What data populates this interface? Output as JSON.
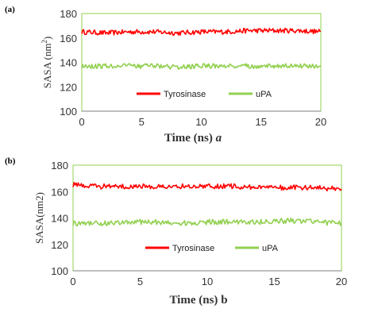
{
  "chart_data": [
    {
      "panel_label": "(a)",
      "type": "line",
      "xlabel": "Time (ns)",
      "xlabel_suffix": "a",
      "ylabel_main": "SASA (nm",
      "ylabel_sup": "2",
      "ylabel_end": ")",
      "xlim": [
        0,
        20
      ],
      "ylim": [
        100,
        180
      ],
      "xticks": [
        "0",
        "5",
        "10",
        "15",
        "20"
      ],
      "yticks": [
        "100",
        "120",
        "140",
        "160",
        "180"
      ],
      "grid": false,
      "legend_position": "inside-lower-center",
      "series": [
        {
          "name": "Tyrosinase",
          "color": "#ff0000",
          "x": [
            0,
            2,
            4,
            6,
            8,
            10,
            12,
            14,
            16,
            18,
            20
          ],
          "y": [
            165,
            164,
            165,
            165,
            164,
            165,
            165,
            166,
            166,
            166,
            165
          ],
          "noise": 2
        },
        {
          "name": "uPA",
          "color": "#92d050",
          "x": [
            0,
            2,
            4,
            6,
            8,
            10,
            12,
            14,
            16,
            18,
            20
          ],
          "y": [
            137,
            137,
            137,
            137,
            136,
            137,
            137,
            137,
            137,
            137,
            137
          ],
          "noise": 2
        }
      ]
    },
    {
      "panel_label": "(b)",
      "type": "line",
      "xlabel": "Time (ns)",
      "xlabel_suffix": "b",
      "ylabel_main": "SASA(nm2)",
      "ylabel_sup": "",
      "ylabel_end": "",
      "xlim": [
        0,
        20
      ],
      "ylim": [
        100,
        180
      ],
      "xticks": [
        "0",
        "5",
        "10",
        "15",
        "20"
      ],
      "yticks": [
        "100",
        "120",
        "140",
        "160",
        "180"
      ],
      "grid": false,
      "legend_position": "inside-center",
      "series": [
        {
          "name": "Tyrosinase",
          "color": "#ff0000",
          "x": [
            0,
            2,
            4,
            6,
            8,
            10,
            12,
            14,
            16,
            18,
            20
          ],
          "y": [
            165,
            164,
            164,
            164,
            164,
            164,
            164,
            163,
            163,
            163,
            162
          ],
          "noise": 2
        },
        {
          "name": "uPA",
          "color": "#92d050",
          "x": [
            0,
            2,
            4,
            6,
            8,
            10,
            12,
            14,
            16,
            18,
            20
          ],
          "y": [
            136,
            136,
            137,
            137,
            136,
            137,
            137,
            137,
            138,
            137,
            136
          ],
          "noise": 2
        }
      ]
    }
  ]
}
